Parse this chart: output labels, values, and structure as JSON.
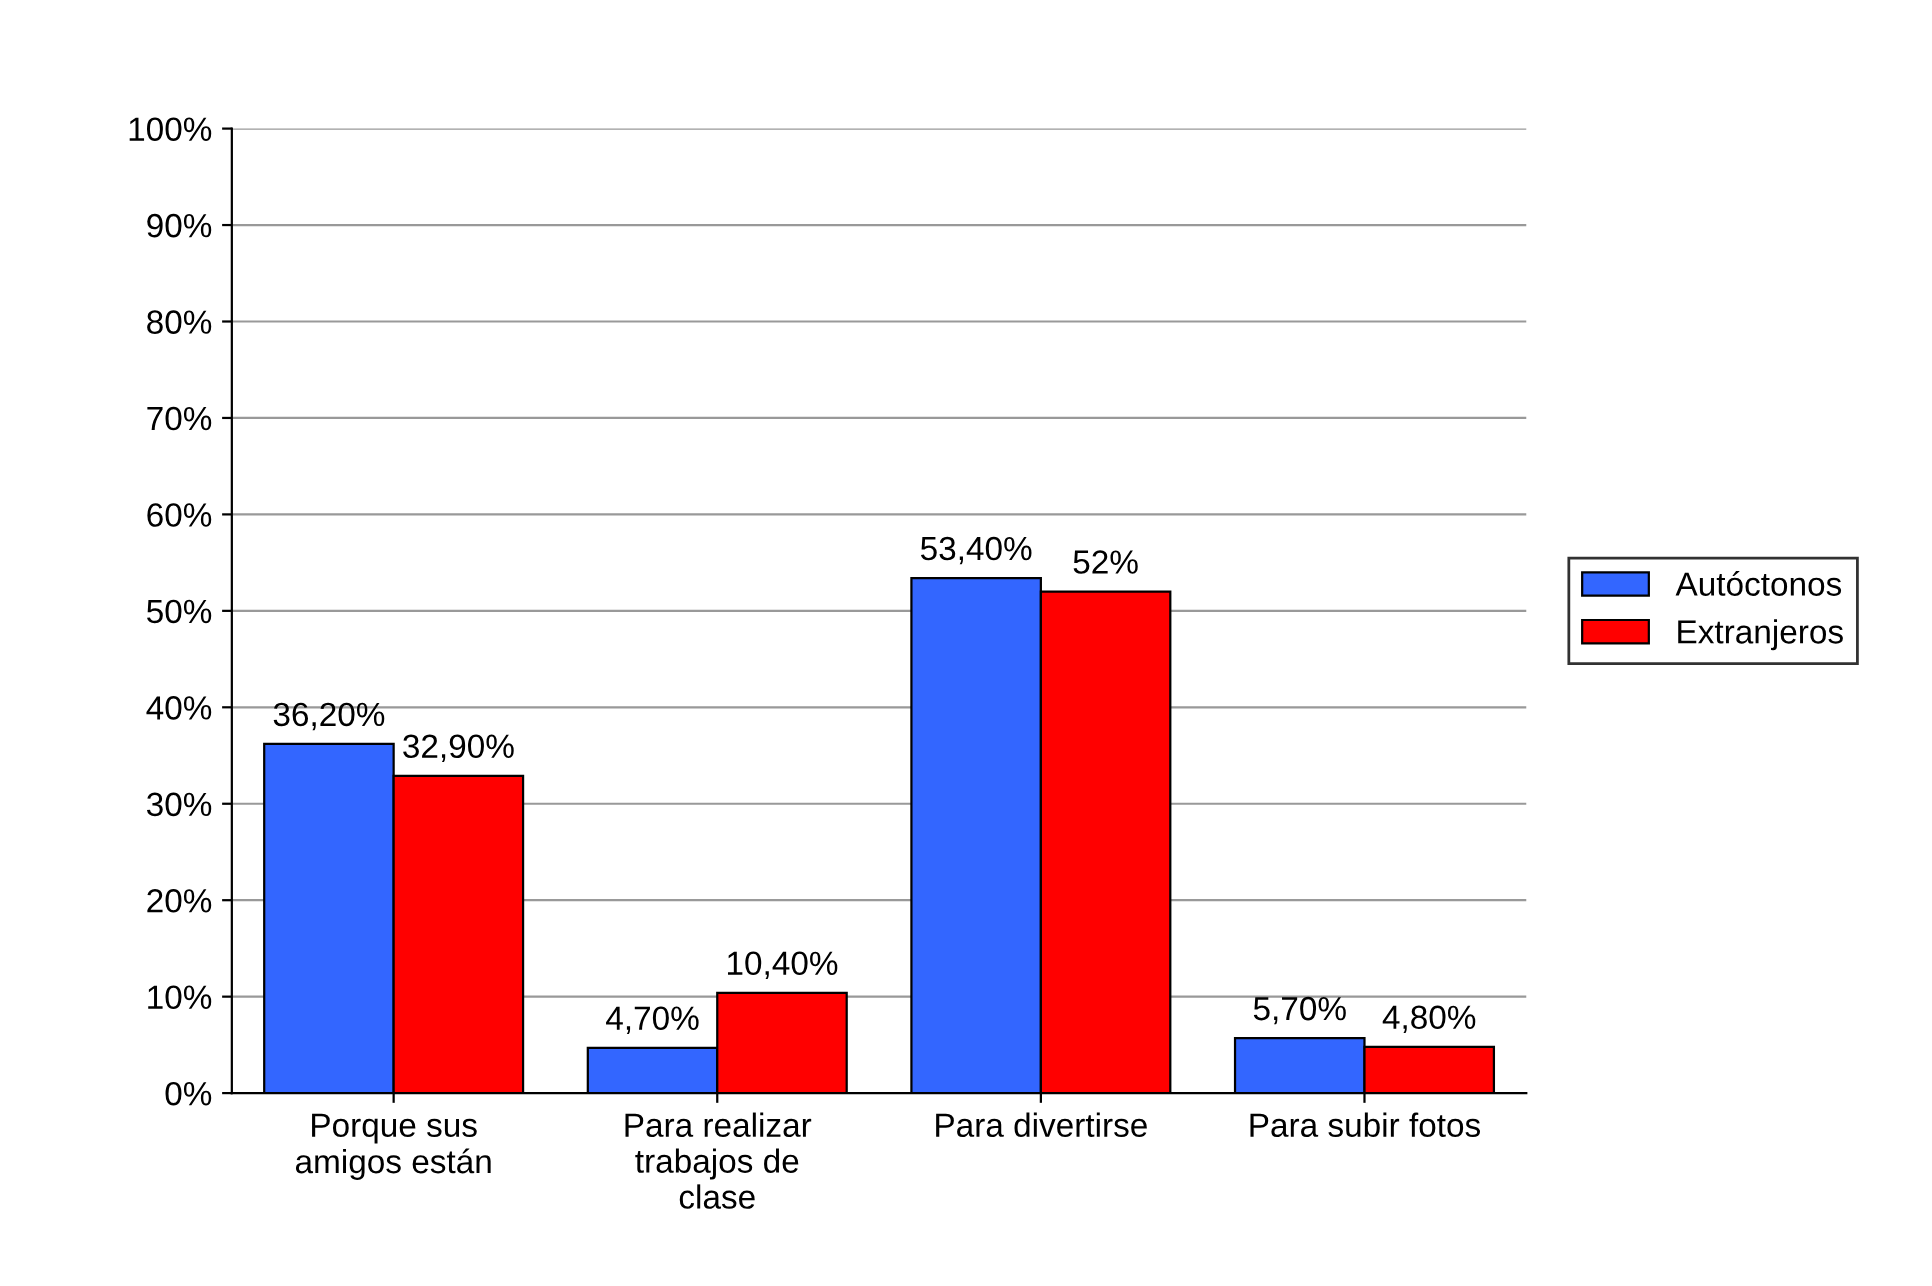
{
  "chart_data": {
    "type": "bar",
    "categories": [
      "Porque sus amigos están",
      "Para realizar trabajos de clase",
      "Para divertirse",
      "Para subir fotos"
    ],
    "series": [
      {
        "name": "Autóctonos",
        "color": "#3366ff",
        "values": [
          36.2,
          4.7,
          53.4,
          5.7
        ],
        "value_labels": [
          "36,20%",
          "4,70%",
          "53,40%",
          "5,70%"
        ]
      },
      {
        "name": "Extranjeros",
        "color": "#ff0000",
        "values": [
          32.9,
          10.4,
          52,
          4.8
        ],
        "value_labels": [
          "32,90%",
          "10,40%",
          "52%",
          "4,80%"
        ]
      }
    ],
    "ylim": [
      0,
      100
    ],
    "yticks": [
      {
        "value": 0,
        "label": "0%"
      },
      {
        "value": 10,
        "label": "10%"
      },
      {
        "value": 20,
        "label": "20%"
      },
      {
        "value": 30,
        "label": "30%"
      },
      {
        "value": 40,
        "label": "40%"
      },
      {
        "value": 50,
        "label": "50%"
      },
      {
        "value": 60,
        "label": "60%"
      },
      {
        "value": 70,
        "label": "70%"
      },
      {
        "value": 80,
        "label": "80%"
      },
      {
        "value": 90,
        "label": "90%"
      },
      {
        "value": 100,
        "label": "100%"
      }
    ],
    "grid": "y",
    "legend": "right"
  }
}
